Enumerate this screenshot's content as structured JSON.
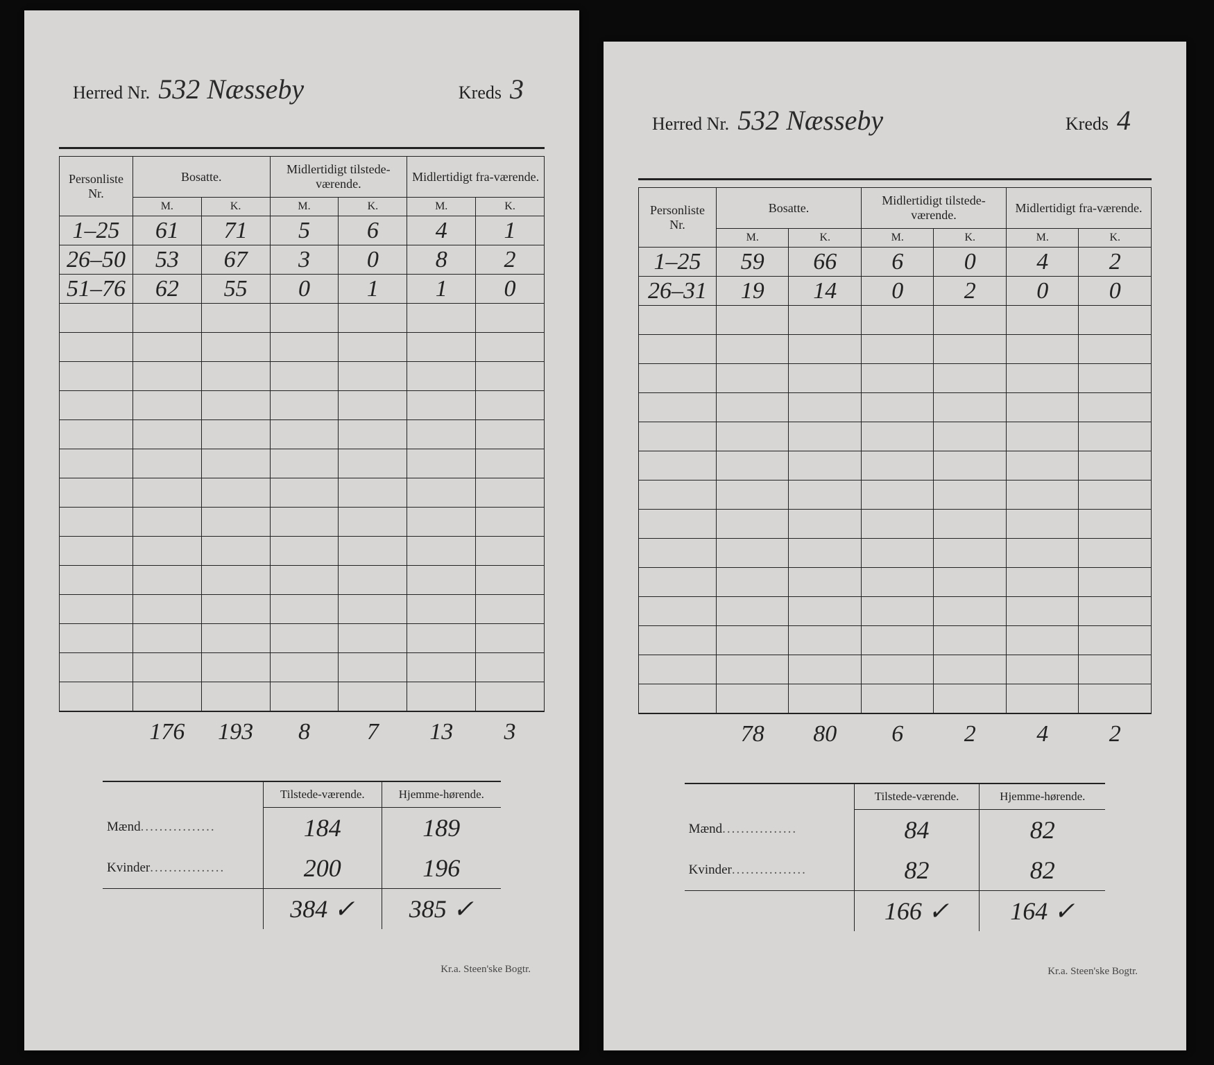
{
  "labels": {
    "herred_nr": "Herred Nr.",
    "kreds": "Kreds",
    "personliste_nr": "Personliste Nr.",
    "bosatte": "Bosatte.",
    "midl_tilstede": "Midlertidigt tilstede-værende.",
    "midl_fra": "Midlertidigt fra-værende.",
    "m": "M.",
    "k": "K.",
    "tilstede": "Tilstede-værende.",
    "hjemme": "Hjemme-hørende.",
    "maend": "Mænd",
    "kvinder": "Kvinder",
    "footer": "Kr.a.  Steen'ske Bogtr."
  },
  "left": {
    "herred_value": "532 Næsseby",
    "kreds_value": "3",
    "rows": [
      {
        "range": "1–25",
        "bm": "61",
        "bk": "71",
        "tm": "5",
        "tk": "6",
        "fm": "4",
        "fk": "1"
      },
      {
        "range": "26–50",
        "bm": "53",
        "bk": "67",
        "tm": "3",
        "tk": "0",
        "fm": "8",
        "fk": "2"
      },
      {
        "range": "51–76",
        "bm": "62",
        "bk": "55",
        "tm": "0",
        "tk": "1",
        "fm": "1",
        "fk": "0"
      }
    ],
    "blank_rows": 14,
    "col_totals": {
      "bm": "176",
      "bk": "193",
      "tm": "8",
      "tk": "7",
      "fm": "13",
      "fk": "3"
    },
    "summary": {
      "maend": {
        "tilstede": "184",
        "hjemme": "189"
      },
      "kvinder": {
        "tilstede": "200",
        "hjemme": "196"
      },
      "sum": {
        "tilstede": "384 ✓",
        "hjemme": "385 ✓"
      }
    }
  },
  "right": {
    "herred_value": "532 Næsseby",
    "kreds_value": "4",
    "rows": [
      {
        "range": "1–25",
        "bm": "59",
        "bk": "66",
        "tm": "6",
        "tk": "0",
        "fm": "4",
        "fk": "2"
      },
      {
        "range": "26–31",
        "bm": "19",
        "bk": "14",
        "tm": "0",
        "tk": "2",
        "fm": "0",
        "fk": "0"
      }
    ],
    "blank_rows": 14,
    "col_totals": {
      "bm": "78",
      "bk": "80",
      "tm": "6",
      "tk": "2",
      "fm": "4",
      "fk": "2"
    },
    "summary": {
      "maend": {
        "tilstede": "84",
        "hjemme": "82"
      },
      "kvinder": {
        "tilstede": "82",
        "hjemme": "82"
      },
      "sum": {
        "tilstede": "166 ✓",
        "hjemme": "164 ✓"
      }
    }
  }
}
